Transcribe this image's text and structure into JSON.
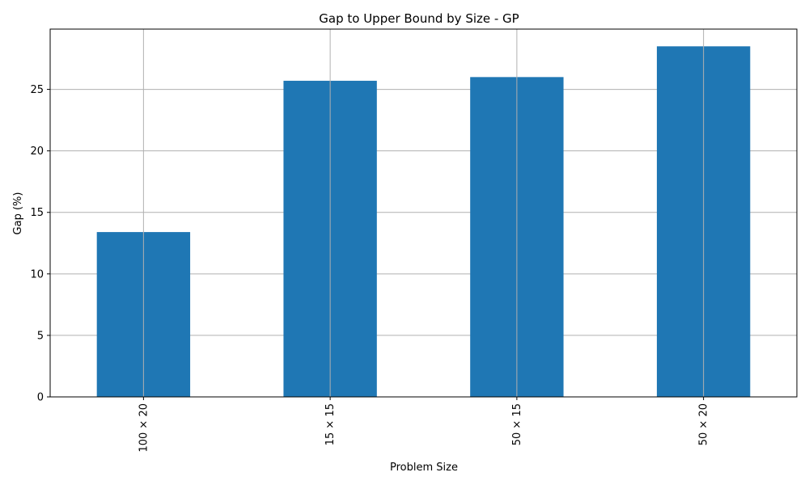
{
  "chart_data": {
    "type": "bar",
    "title": "Gap to Upper Bound by Size - GP",
    "xlabel": "Problem Size",
    "ylabel": "Gap (%)",
    "categories": [
      "100 × 20",
      "15 × 15",
      "50 × 15",
      "50 × 20"
    ],
    "values": [
      13.4,
      25.7,
      26.0,
      28.5
    ],
    "ylim": [
      0,
      29.9
    ],
    "yticks": [
      0,
      5,
      10,
      15,
      20,
      25
    ],
    "grid": true,
    "bar_color": "#1f77b4",
    "x_tick_rotation": "vertical"
  }
}
